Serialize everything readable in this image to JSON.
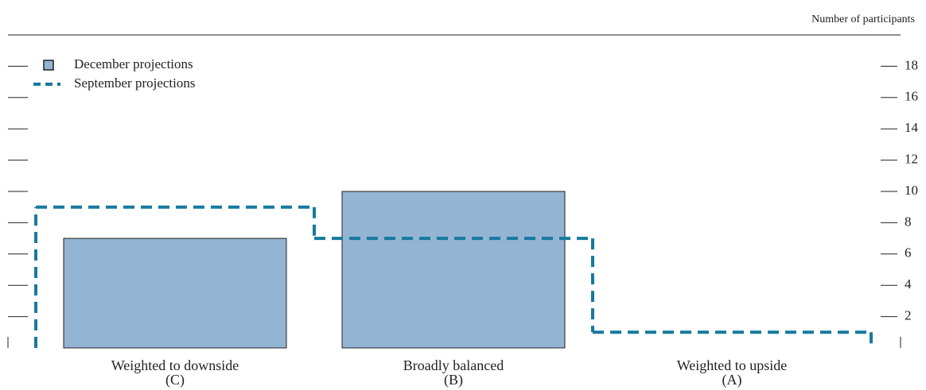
{
  "chart_data": {
    "type": "bar",
    "y_axis_label": "Number of participants",
    "categories": [
      "Weighted to downside",
      "Broadly balanced",
      "Weighted to upside"
    ],
    "category_codes": [
      "(C)",
      "(B)",
      "(A)"
    ],
    "series": [
      {
        "name": "December projections",
        "color": "#94b4d4",
        "style": "bar",
        "values": [
          7,
          10,
          0
        ]
      },
      {
        "name": "September projections",
        "color": "#17799f",
        "style": "dashed-step",
        "values": [
          9,
          7,
          1
        ]
      }
    ],
    "ylim": [
      0,
      20
    ],
    "yticks": [
      2,
      4,
      6,
      8,
      10,
      12,
      14,
      16,
      18
    ]
  }
}
